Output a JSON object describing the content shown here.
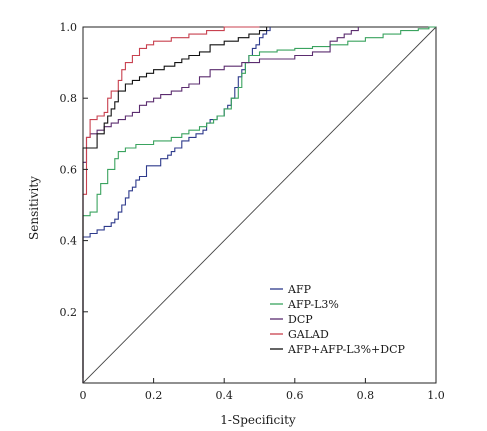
{
  "chart_data": {
    "type": "line",
    "xlabel": "1-Specificity",
    "ylabel": "Sensitivity",
    "xlim": [
      0,
      1
    ],
    "ylim": [
      0,
      1
    ],
    "x_ticks": [
      "0",
      "0.2",
      "0.4",
      "0.6",
      "0.8",
      "1.0"
    ],
    "y_ticks": [
      "0.2",
      "0.4",
      "0.6",
      "0.8",
      "1.0"
    ],
    "grid": false,
    "legend_position": "bottom-right",
    "reference_line": {
      "x": [
        0,
        1
      ],
      "y": [
        0,
        1
      ],
      "color": "#444444"
    },
    "series": [
      {
        "name": "AFP",
        "color": "#2e3a8c",
        "x": [
          0,
          0,
          0.02,
          0.04,
          0.06,
          0.08,
          0.09,
          0.1,
          0.11,
          0.12,
          0.13,
          0.14,
          0.15,
          0.16,
          0.18,
          0.2,
          0.22,
          0.24,
          0.25,
          0.26,
          0.28,
          0.3,
          0.32,
          0.34,
          0.35,
          0.36,
          0.38,
          0.4,
          0.41,
          0.42,
          0.43,
          0.44,
          0.45,
          0.46,
          0.47,
          0.48,
          0.49,
          0.5,
          0.51,
          0.52,
          0.53
        ],
        "y": [
          0,
          0.41,
          0.42,
          0.43,
          0.44,
          0.45,
          0.46,
          0.48,
          0.5,
          0.52,
          0.54,
          0.55,
          0.57,
          0.58,
          0.61,
          0.61,
          0.63,
          0.64,
          0.65,
          0.66,
          0.68,
          0.69,
          0.7,
          0.71,
          0.73,
          0.74,
          0.75,
          0.77,
          0.78,
          0.8,
          0.83,
          0.86,
          0.88,
          0.9,
          0.92,
          0.94,
          0.95,
          0.97,
          0.98,
          0.99,
          1.0
        ]
      },
      {
        "name": "AFP-L3%",
        "color": "#3aa35f",
        "x": [
          0,
          0,
          0.02,
          0.04,
          0.05,
          0.07,
          0.09,
          0.1,
          0.12,
          0.15,
          0.18,
          0.2,
          0.25,
          0.28,
          0.3,
          0.33,
          0.35,
          0.37,
          0.38,
          0.4,
          0.42,
          0.44,
          0.45,
          0.46,
          0.47,
          0.5,
          0.55,
          0.6,
          0.65,
          0.7,
          0.75,
          0.8,
          0.85,
          0.9,
          0.95,
          0.98,
          1.0
        ],
        "y": [
          0,
          0.47,
          0.48,
          0.53,
          0.56,
          0.6,
          0.63,
          0.65,
          0.66,
          0.67,
          0.67,
          0.68,
          0.69,
          0.7,
          0.71,
          0.72,
          0.73,
          0.74,
          0.75,
          0.77,
          0.8,
          0.83,
          0.87,
          0.9,
          0.92,
          0.93,
          0.935,
          0.94,
          0.945,
          0.95,
          0.96,
          0.97,
          0.98,
          0.99,
          0.995,
          1.0,
          1.0
        ]
      },
      {
        "name": "DCP",
        "color": "#5b2c6f",
        "x": [
          0,
          0,
          0.01,
          0.02,
          0.04,
          0.06,
          0.08,
          0.1,
          0.12,
          0.14,
          0.16,
          0.18,
          0.2,
          0.22,
          0.25,
          0.28,
          0.3,
          0.33,
          0.36,
          0.4,
          0.45,
          0.5,
          0.55,
          0.6,
          0.65,
          0.7,
          0.72,
          0.74,
          0.76,
          0.78
        ],
        "y": [
          0,
          0.62,
          0.69,
          0.7,
          0.71,
          0.72,
          0.73,
          0.74,
          0.75,
          0.76,
          0.78,
          0.79,
          0.8,
          0.81,
          0.82,
          0.83,
          0.84,
          0.86,
          0.88,
          0.89,
          0.9,
          0.91,
          0.91,
          0.92,
          0.93,
          0.96,
          0.97,
          0.98,
          0.99,
          1.0
        ]
      },
      {
        "name": "GALAD",
        "color": "#c8414f",
        "x": [
          0,
          0,
          0.01,
          0.02,
          0.04,
          0.06,
          0.07,
          0.08,
          0.1,
          0.11,
          0.12,
          0.14,
          0.16,
          0.18,
          0.2,
          0.25,
          0.3,
          0.35,
          0.4,
          0.45,
          0.5
        ],
        "y": [
          0,
          0.53,
          0.69,
          0.74,
          0.75,
          0.76,
          0.8,
          0.82,
          0.85,
          0.88,
          0.9,
          0.92,
          0.94,
          0.95,
          0.96,
          0.97,
          0.98,
          0.99,
          1.0,
          1.0,
          1.0
        ]
      },
      {
        "name": "AFP+AFP-L3%+DCP",
        "color": "#111111",
        "x": [
          0,
          0,
          0.02,
          0.04,
          0.06,
          0.07,
          0.08,
          0.09,
          0.1,
          0.12,
          0.14,
          0.16,
          0.18,
          0.2,
          0.23,
          0.26,
          0.28,
          0.3,
          0.33,
          0.36,
          0.4,
          0.44,
          0.47,
          0.5,
          0.52
        ],
        "y": [
          0,
          0.66,
          0.66,
          0.7,
          0.73,
          0.75,
          0.77,
          0.79,
          0.82,
          0.84,
          0.85,
          0.86,
          0.87,
          0.88,
          0.89,
          0.9,
          0.91,
          0.92,
          0.93,
          0.95,
          0.96,
          0.97,
          0.98,
          0.99,
          1.0
        ]
      }
    ]
  }
}
